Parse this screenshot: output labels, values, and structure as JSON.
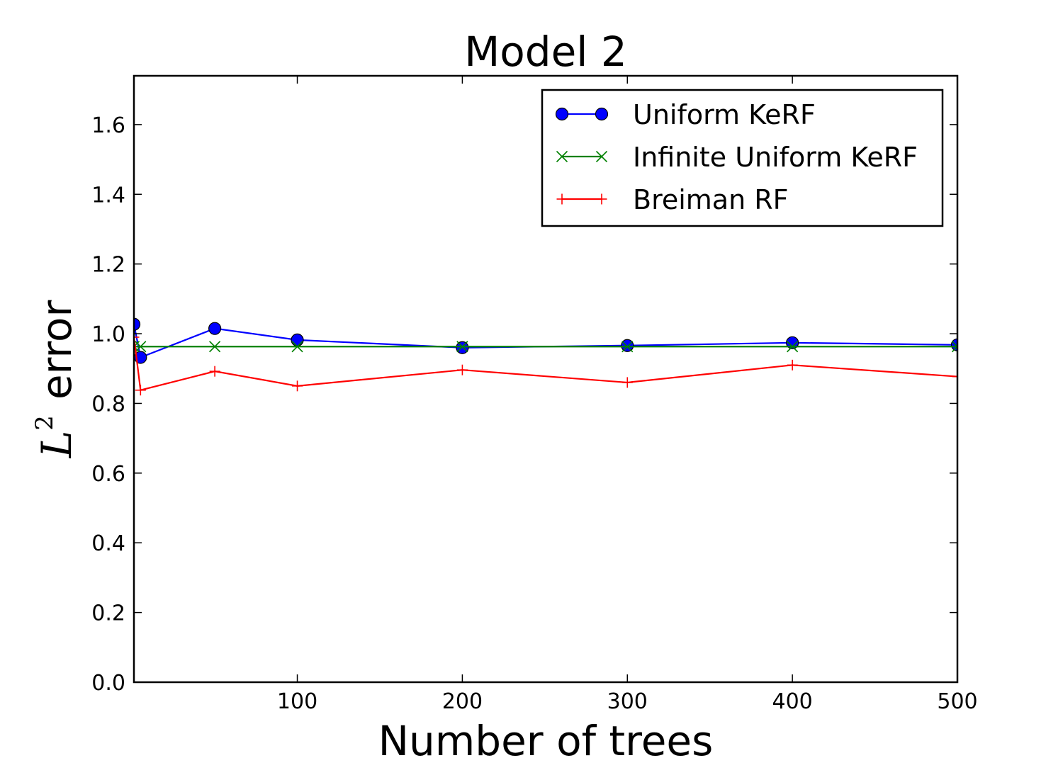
{
  "chart_data": {
    "type": "line",
    "title": "Model 2",
    "xlabel": "Number of trees",
    "ylabel": {
      "base": "L",
      "superscript": "2",
      "text": "error"
    },
    "xlim": [
      1,
      500
    ],
    "ylim": [
      0,
      1.74
    ],
    "xticks": [
      100,
      200,
      300,
      400,
      500
    ],
    "yticks": [
      0.0,
      0.2,
      0.4,
      0.6,
      0.8,
      1.0,
      1.2,
      1.4,
      1.6
    ],
    "ytick_labels": [
      "0.0",
      "0.2",
      "0.4",
      "0.6",
      "0.8",
      "1.0",
      "1.2",
      "1.4",
      "1.6"
    ],
    "xtick_labels": [
      "100",
      "200",
      "300",
      "400",
      "500"
    ],
    "grid": false,
    "legend": "top-right",
    "series": [
      {
        "name": "Uniform KeRF",
        "color": "#0000ff",
        "marker": "circle",
        "x": [
          1,
          5,
          50,
          100,
          200,
          300,
          400,
          500
        ],
        "y": [
          1.027,
          0.932,
          1.015,
          0.982,
          0.96,
          0.966,
          0.974,
          0.968
        ]
      },
      {
        "name": "Infinite Uniform KeRF",
        "color": "#008000",
        "marker": "x",
        "x": [
          1,
          5,
          50,
          100,
          200,
          300,
          400,
          500
        ],
        "y": [
          0.963,
          0.963,
          0.963,
          0.963,
          0.963,
          0.963,
          0.963,
          0.963
        ]
      },
      {
        "name": "Breiman RF",
        "color": "#ff0000",
        "marker": "plus",
        "x": [
          1,
          5,
          50,
          100,
          200,
          300,
          400,
          500
        ],
        "y": [
          0.99,
          0.838,
          0.892,
          0.85,
          0.896,
          0.86,
          0.91,
          0.877
        ]
      }
    ]
  }
}
